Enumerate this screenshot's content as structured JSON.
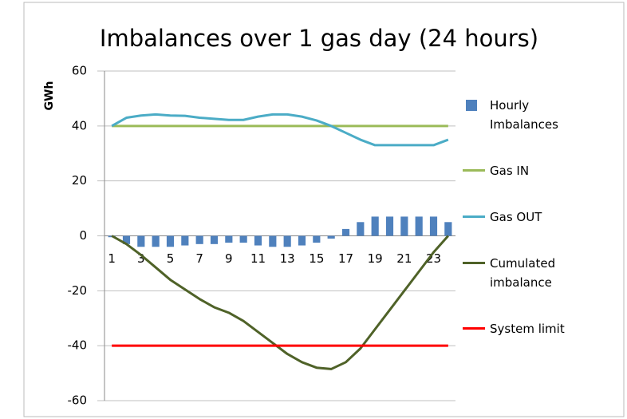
{
  "chart_data": {
    "type": "bar",
    "title": "Imbalances over 1 gas day (24 hours)",
    "y_label": "GWh",
    "categories": [
      1,
      null,
      3,
      null,
      5,
      null,
      7,
      null,
      9,
      null,
      11,
      null,
      13,
      null,
      15,
      null,
      17,
      null,
      19,
      null,
      21,
      null,
      23,
      null
    ],
    "ylim": [
      -60,
      60
    ],
    "yticks": [
      -60,
      -40,
      -20,
      0,
      20,
      40,
      60
    ],
    "grid": true,
    "series": [
      {
        "name": "Hourly Imbalances",
        "type": "bar",
        "color": "#4f81bd",
        "values": [
          -0.5,
          -3,
          -4,
          -4,
          -4,
          -3.5,
          -3,
          -3,
          -2.5,
          -2.5,
          -3.5,
          -4,
          -4,
          -3.5,
          -2.5,
          -1,
          2.5,
          5,
          7,
          7,
          7,
          7,
          7,
          5
        ]
      },
      {
        "name": "Gas IN",
        "type": "line",
        "color": "#9bbb59",
        "values": [
          40,
          40,
          40,
          40,
          40,
          40,
          40,
          40,
          40,
          40,
          40,
          40,
          40,
          40,
          40,
          40,
          40,
          40,
          40,
          40,
          40,
          40,
          40,
          40
        ]
      },
      {
        "name": "Gas OUT",
        "type": "line",
        "color": "#4bacc6",
        "values": [
          40,
          43,
          43.8,
          44.2,
          43.8,
          43.7,
          43,
          42.6,
          42.2,
          42.2,
          43.4,
          44.2,
          44.2,
          43.4,
          42,
          40,
          37.5,
          35,
          33,
          33,
          33,
          33,
          33,
          35
        ]
      },
      {
        "name": "Cumulated imbalance",
        "type": "line",
        "color": "#4f6228",
        "values": [
          0,
          -3,
          -7,
          -11.5,
          -16,
          -19.5,
          -23,
          -26,
          -28,
          -31,
          -35,
          -39,
          -43,
          -46,
          -48,
          -48.5,
          -46,
          -41,
          -34,
          -27,
          -20,
          -13,
          -6,
          0
        ]
      },
      {
        "name": "System limit",
        "type": "line",
        "color": "#ff0000",
        "values": [
          -40,
          -40,
          -40,
          -40,
          -40,
          -40,
          -40,
          -40,
          -40,
          -40,
          -40,
          -40,
          -40,
          -40,
          -40,
          -40,
          -40,
          -40,
          -40,
          -40,
          -40,
          -40,
          -40,
          -40
        ]
      }
    ]
  }
}
